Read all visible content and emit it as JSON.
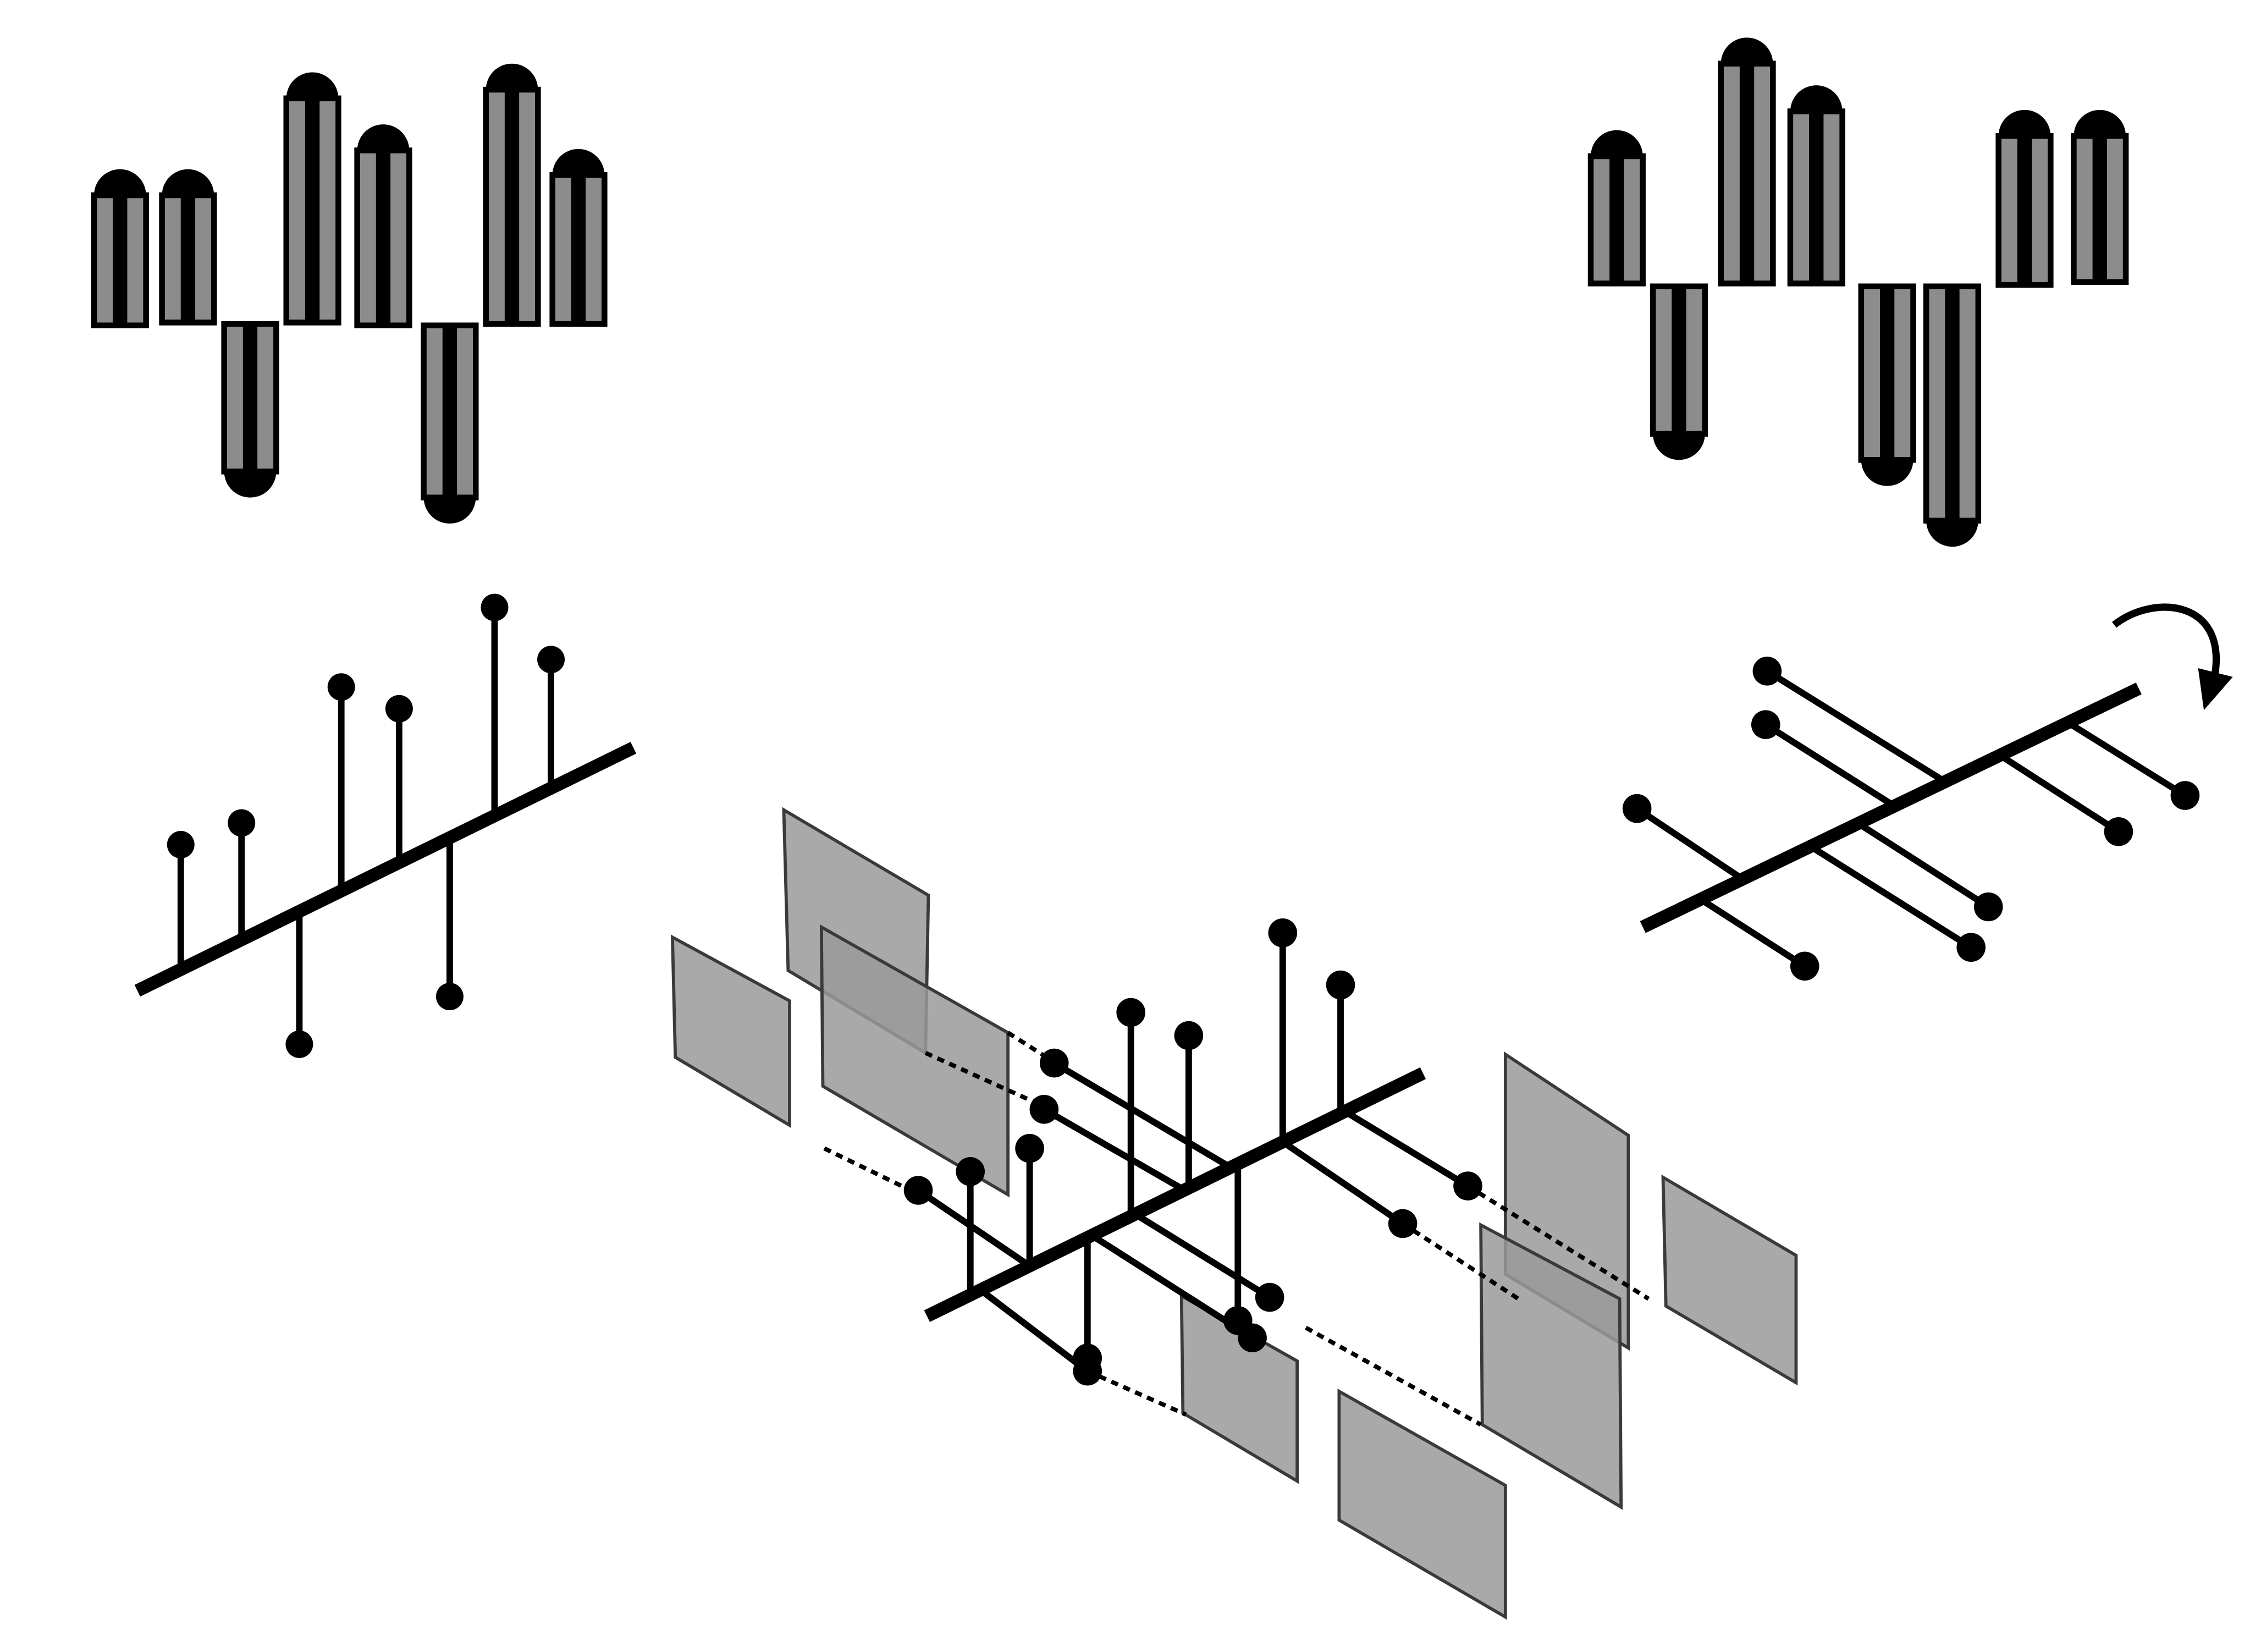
{
  "colors": {
    "ink": "#000000",
    "pillar_fill": "#8c8c8c",
    "plane_fill": "#9a9a9a",
    "plane_stroke": "#3a3a3a",
    "background": "#ffffff"
  },
  "panels": [
    "top-left-pillar-row",
    "top-right-pillar-row",
    "middle-left-comb-vertical",
    "middle-right-comb-rotated",
    "bottom-center-comb-with-projection-planes"
  ],
  "icons": [
    "rotate-arrow-icon"
  ]
}
